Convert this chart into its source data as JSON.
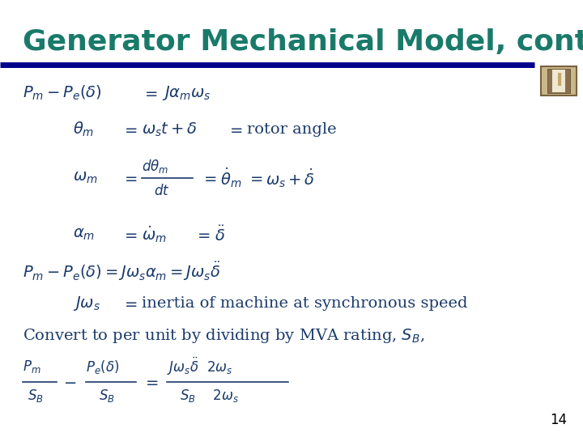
{
  "title": "Generator Mechanical Model, cont’d",
  "title_color": "#1a7a6a",
  "title_fontsize": 26,
  "bg_color": "#ffffff",
  "header_bar_color": "#00008B",
  "text_color": "#1a3a6b",
  "slide_number": "14"
}
